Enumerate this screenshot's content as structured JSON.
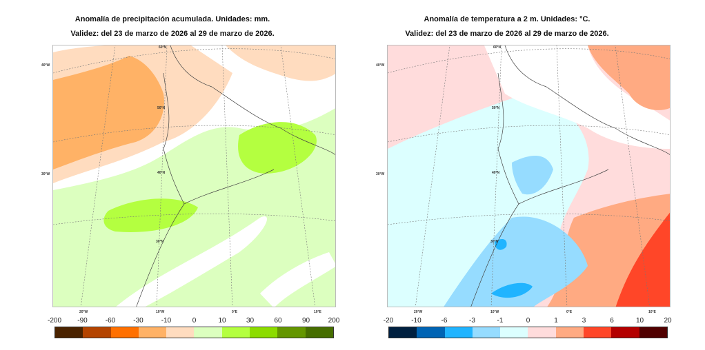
{
  "left": {
    "title": "Anomalía de precipitación acumulada. Unidades: mm.",
    "validity": "Validez: del 23 de marzo de 2026 al 29 de marzo de 2026.",
    "colorbar": {
      "ticks": [
        "-200",
        "-90",
        "-60",
        "-30",
        "-10",
        "0",
        "10",
        "30",
        "60",
        "90",
        "200"
      ],
      "colors": [
        "#4a2300",
        "#b44400",
        "#ff7000",
        "#ffb266",
        "#ffdcbf",
        "#dcffbf",
        "#b4ff40",
        "#8cdc00",
        "#649600",
        "#466e00"
      ]
    },
    "lat_labels": [
      "60°N",
      "50°N",
      "40°N",
      "30°N"
    ],
    "lon_labels_side": [
      "40°W",
      "30°W"
    ],
    "lon_labels_bottom": [
      "20°W",
      "10°W",
      "0°E",
      "10°E"
    ]
  },
  "right": {
    "title": "Anomalía de temperatura a 2 m. Unidades: °C.",
    "validity": "Validez: del 23 de marzo de 2026 al 29 de marzo de 2026.",
    "colorbar": {
      "ticks": [
        "-20",
        "-10",
        "-6",
        "-3",
        "-1",
        "0",
        "1",
        "3",
        "6",
        "10",
        "20"
      ],
      "colors": [
        "#002040",
        "#0064b4",
        "#20b4ff",
        "#96dcff",
        "#dcffff",
        "#ffdcdc",
        "#ffaa82",
        "#ff4628",
        "#b40000",
        "#500000"
      ]
    },
    "lat_labels": [
      "60°N",
      "50°N",
      "40°N",
      "30°N"
    ],
    "lon_labels_side": [
      "40°W",
      "30°W"
    ],
    "lon_labels_bottom": [
      "20°W",
      "10°W",
      "0°E",
      "10°E"
    ]
  }
}
